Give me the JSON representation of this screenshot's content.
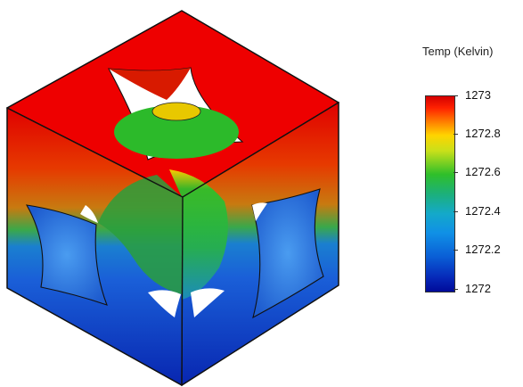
{
  "legend": {
    "title": "Temp (Kelvin)",
    "ticks": [
      "1273",
      "1272.8",
      "1272.6",
      "1272.4",
      "1272.2",
      "1272"
    ],
    "min": 1272,
    "max": 1273
  },
  "colors": {
    "hot": "#e00000",
    "warm": "#ff8a00",
    "mid": "#2fbf2a",
    "cool": "#1090e6",
    "cold": "#0a2fc0"
  }
}
